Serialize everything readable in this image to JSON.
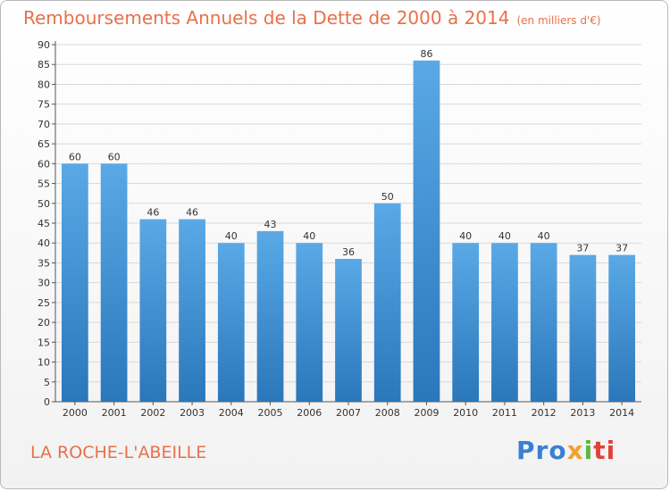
{
  "header": {
    "title": "Remboursements Annuels de la Dette de 2000 à 2014",
    "unit": "(en milliers d'€)"
  },
  "footer": {
    "place": "LA ROCHE-L'ABEILLE",
    "logo": [
      "Pro",
      "x",
      "i",
      "ti"
    ]
  },
  "colors": {
    "title": "#e8704a",
    "bar_top": "#5aa9e6",
    "bar_bottom": "#2a77ba",
    "grid": "#d9d9d9"
  },
  "chart_data": {
    "type": "bar",
    "categories": [
      "2000",
      "2001",
      "2002",
      "2003",
      "2004",
      "2005",
      "2006",
      "2007",
      "2008",
      "2009",
      "2010",
      "2011",
      "2012",
      "2013",
      "2014"
    ],
    "values": [
      60,
      60,
      46,
      46,
      40,
      43,
      40,
      36,
      50,
      86,
      40,
      40,
      40,
      37,
      37
    ],
    "title": "Remboursements Annuels de la Dette de 2000 à 2014",
    "ylim": [
      0,
      90
    ],
    "ytick_step": 5,
    "grid": true,
    "data_labels": true
  }
}
